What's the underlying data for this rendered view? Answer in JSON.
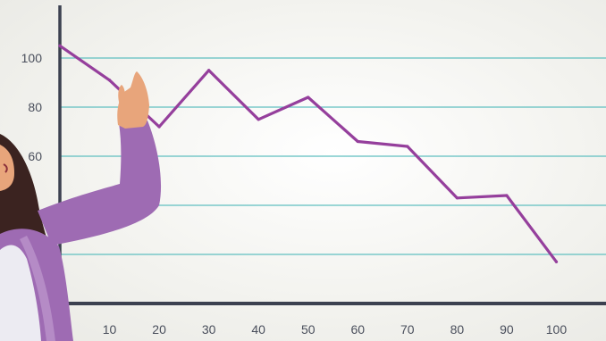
{
  "chart_data": {
    "type": "line",
    "title": "",
    "xlabel": "",
    "ylabel": "",
    "x": [
      0,
      10,
      20,
      30,
      40,
      50,
      60,
      70,
      80,
      90,
      100
    ],
    "series": [
      {
        "values": [
          105,
          91,
          72,
          95,
          75,
          84,
          66,
          64,
          43,
          44,
          17
        ]
      }
    ],
    "x_ticks": [
      "10",
      "20",
      "30",
      "40",
      "50",
      "60",
      "70",
      "80",
      "90",
      "100"
    ],
    "y_ticks": [
      "60",
      "80",
      "100"
    ],
    "xlim": [
      0,
      110
    ],
    "ylim": [
      0,
      120
    ],
    "grid": true,
    "colors": {
      "line": "#953f9c",
      "grid": "#5fbfc0",
      "axis": "#3c4150"
    }
  },
  "illustration": {
    "figure": "woman-presenting",
    "colors": {
      "jacket": "#9e6bb3",
      "skin": "#e8a57b",
      "hair": "#3b2320",
      "shirt": "#ecebf2"
    }
  }
}
